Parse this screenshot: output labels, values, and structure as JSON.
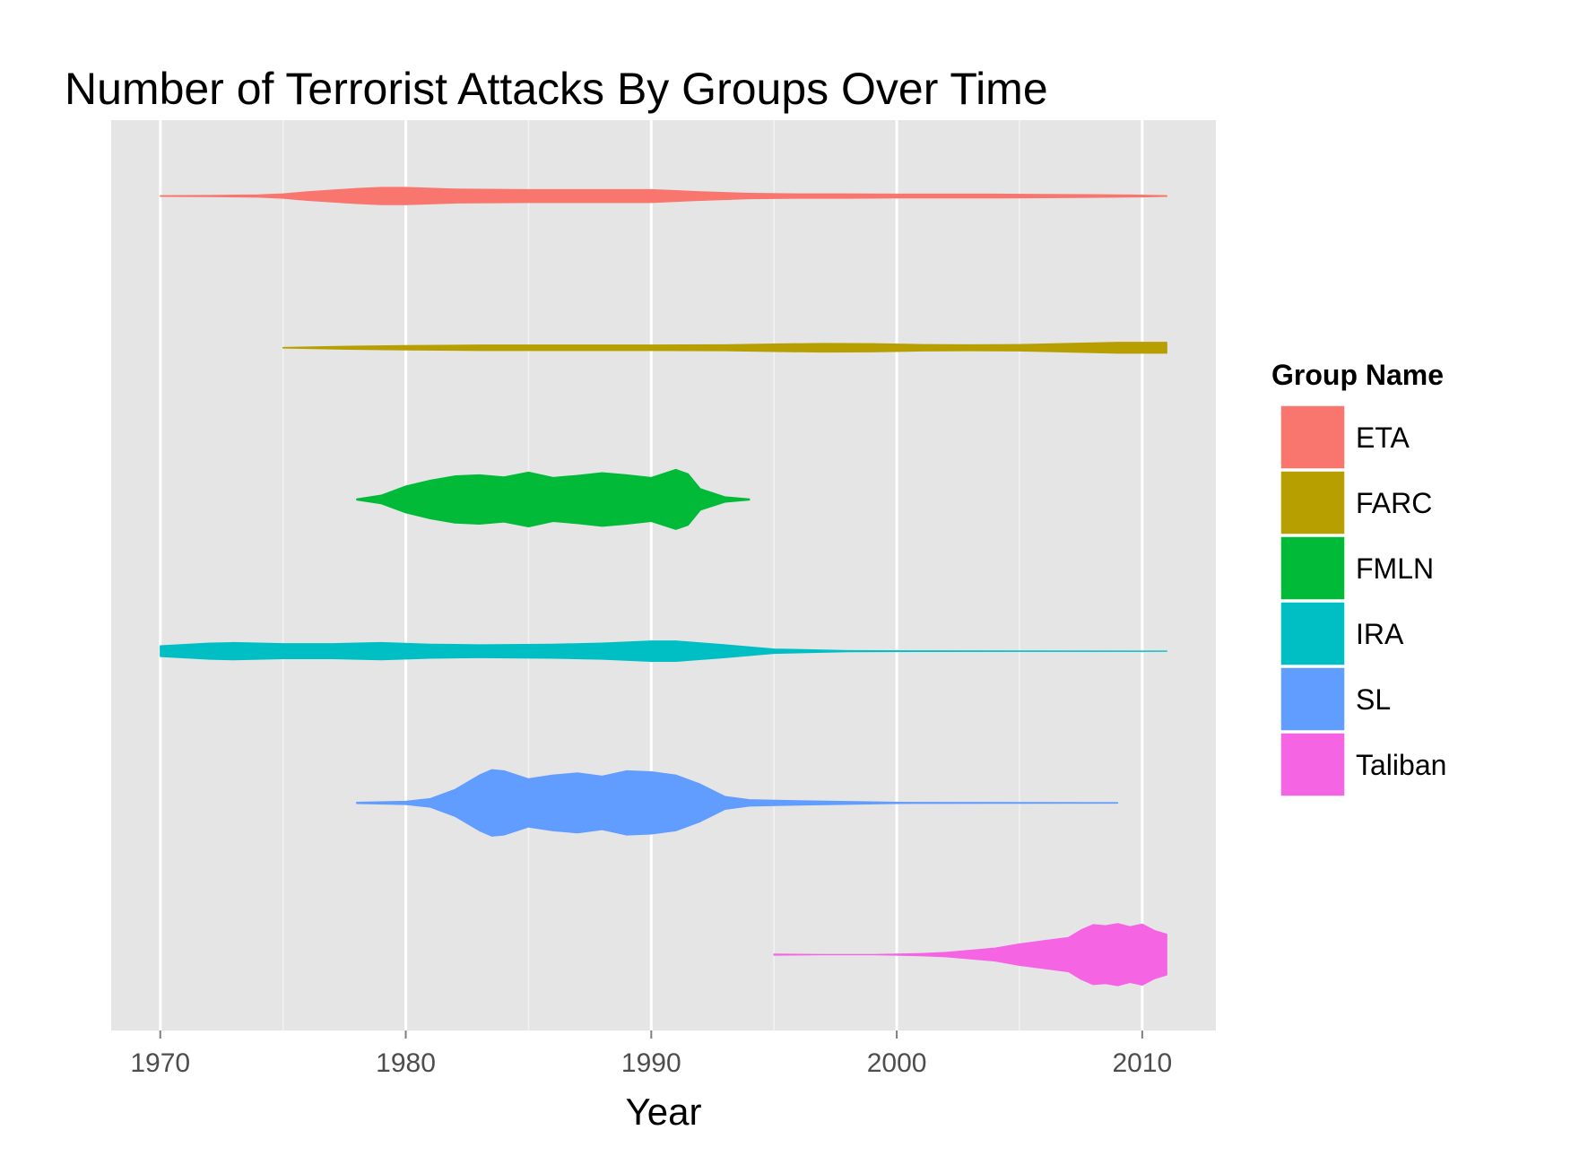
{
  "chart_data": {
    "type": "area",
    "title": "Number of Terrorist Attacks By Groups Over Time",
    "xlabel": "Year",
    "ylabel": "",
    "xlim": [
      1968,
      2013
    ],
    "x_ticks": [
      "1970",
      "1980",
      "1990",
      "2000",
      "2010"
    ],
    "grid": true,
    "legend": {
      "title": "Group Name",
      "placement": "right"
    },
    "series": [
      {
        "name": "ETA",
        "color": "#F8766D",
        "years": [
          1970,
          1972,
          1974,
          1975,
          1976,
          1978,
          1979,
          1980,
          1982,
          1985,
          1988,
          1990,
          1992,
          1994,
          1996,
          1998,
          2000,
          2002,
          2004,
          2006,
          2008,
          2010,
          2011
        ],
        "density": [
          0.5,
          1,
          2,
          4,
          8,
          14,
          16,
          16,
          13,
          12,
          12,
          12,
          8,
          5,
          4,
          4,
          3.5,
          3.5,
          3.5,
          3,
          2.5,
          1.5,
          0.5
        ]
      },
      {
        "name": "FARC",
        "color": "#B79F00",
        "years": [
          1975,
          1978,
          1980,
          1983,
          1986,
          1990,
          1993,
          1995,
          1997,
          1999,
          2001,
          2003,
          2005,
          2007,
          2009,
          2011
        ],
        "density": [
          0.5,
          3,
          4,
          5,
          5,
          5,
          5.5,
          7,
          8,
          7.5,
          6,
          5.5,
          6,
          8,
          10,
          10
        ]
      },
      {
        "name": "FMLN",
        "color": "#00BA38",
        "years": [
          1978,
          1979,
          1980,
          1981,
          1982,
          1983,
          1984,
          1985,
          1986,
          1987,
          1988,
          1989,
          1990,
          1991,
          1991.5,
          1992,
          1993,
          1994
        ],
        "density": [
          1,
          8,
          25,
          36,
          44,
          46,
          42,
          51,
          41,
          45,
          50,
          46,
          41,
          56,
          48,
          20,
          5,
          1
        ]
      },
      {
        "name": "IRA",
        "color": "#00BFC4",
        "years": [
          1970,
          1972,
          1973,
          1975,
          1977,
          1979,
          1981,
          1983,
          1986,
          1988,
          1990,
          1991,
          1993,
          1995,
          1998,
          2001,
          2005,
          2011
        ],
        "density": [
          10,
          15,
          16,
          14,
          14,
          16,
          13,
          12,
          13,
          15,
          19,
          19,
          12,
          4,
          1,
          0.5,
          0.3,
          0.2
        ]
      },
      {
        "name": "SL",
        "color": "#619CFF",
        "years": [
          1978,
          1980,
          1981,
          1982,
          1983,
          1983.5,
          1984,
          1985,
          1986,
          1987,
          1988,
          1989,
          1990,
          1991,
          1992,
          1993,
          1994,
          1996,
          2000,
          2009
        ],
        "density": [
          1,
          3,
          8,
          25,
          52,
          62,
          60,
          45,
          52,
          56,
          50,
          60,
          58,
          52,
          35,
          12,
          6,
          4,
          1,
          0.5
        ]
      },
      {
        "name": "Taliban",
        "color": "#F564E3",
        "years": [
          1995,
          1996,
          1997,
          1999,
          2000,
          2001,
          2002,
          2003,
          2004,
          2005,
          2006,
          2007,
          2007.5,
          2008,
          2008.5,
          2009,
          2009.5,
          2010,
          2010.5,
          2011
        ],
        "density": [
          1,
          0.5,
          0.2,
          0.2,
          1,
          2,
          4,
          8,
          12,
          20,
          26,
          32,
          46,
          56,
          54,
          58,
          52,
          57,
          45,
          38
        ]
      }
    ]
  }
}
